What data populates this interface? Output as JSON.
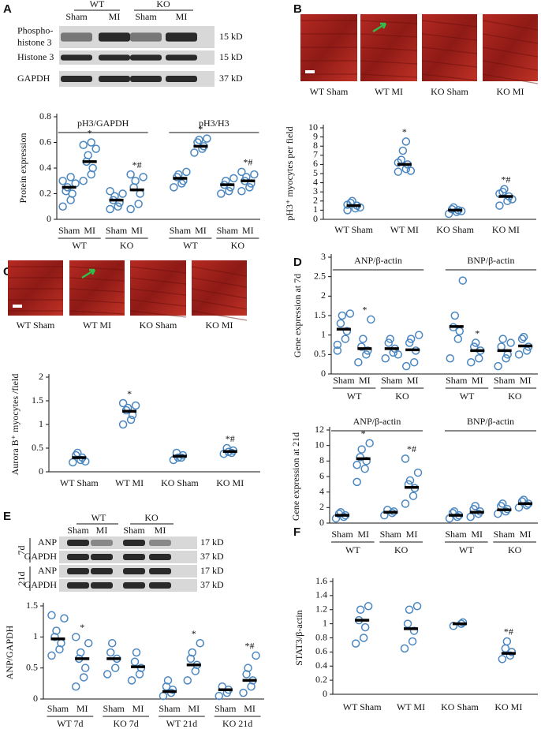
{
  "panel_labels": [
    "A",
    "B",
    "C",
    "D",
    "E",
    "F"
  ],
  "blot_a": {
    "groups": [
      "WT",
      "KO"
    ],
    "lanes": [
      "Sham",
      "MI",
      "Sham",
      "MI"
    ],
    "rows": [
      [
        "Phospho-",
        "histone 3"
      ],
      [
        "Histone 3"
      ],
      [
        "GAPDH"
      ]
    ],
    "sizes": [
      "15 kD",
      "15 kD",
      "37 kD"
    ]
  },
  "images_b": [
    "WT Sham",
    "WT MI",
    "KO Sham",
    "KO MI"
  ],
  "images_c": [
    "WT Sham",
    "WT MI",
    "KO Sham",
    "KO MI"
  ],
  "blot_e": {
    "groups": [
      "WT",
      "KO"
    ],
    "lanes": [
      "Sham",
      "MI",
      "Sham",
      "MI"
    ],
    "times": [
      "7d",
      "21d"
    ],
    "rows": [
      "ANP",
      "GAPDH"
    ],
    "sizes": [
      "17 kD",
      "37 kD"
    ]
  },
  "chart_data": [
    {
      "type": "dot",
      "color": "#4a86c0",
      "ylabel": "Protein expression",
      "ylim": [
        0,
        0.8
      ],
      "yticks": [
        0,
        0.2,
        0.4,
        0.6,
        0.8
      ],
      "groups": [
        "pH3/GAPDH",
        "pH3/H3"
      ],
      "subgroups": [
        "WT",
        "KO",
        "WT",
        "KO"
      ],
      "categories": [
        "Sham",
        "MI",
        "Sham",
        "MI",
        "Sham",
        "MI",
        "Sham",
        "MI"
      ],
      "means": [
        0.25,
        0.45,
        0.15,
        0.23,
        0.32,
        0.57,
        0.27,
        0.3
      ],
      "points": [
        [
          0.1,
          0.15,
          0.2,
          0.22,
          0.25,
          0.28,
          0.3,
          0.33
        ],
        [
          0.3,
          0.35,
          0.4,
          0.45,
          0.5,
          0.55,
          0.58,
          0.6
        ],
        [
          0.08,
          0.1,
          0.13,
          0.15,
          0.18,
          0.2,
          0.22
        ],
        [
          0.08,
          0.12,
          0.2,
          0.25,
          0.3,
          0.33,
          0.35
        ],
        [
          0.25,
          0.28,
          0.3,
          0.33,
          0.35,
          0.37
        ],
        [
          0.52,
          0.55,
          0.57,
          0.6,
          0.62,
          0.63
        ],
        [
          0.2,
          0.22,
          0.25,
          0.27,
          0.3,
          0.32
        ],
        [
          0.22,
          0.25,
          0.28,
          0.3,
          0.33,
          0.35,
          0.37
        ]
      ],
      "annotations": [
        null,
        "*",
        null,
        "*#",
        null,
        "*",
        null,
        "*#"
      ]
    },
    {
      "type": "dot",
      "color": "#4a86c0",
      "ylabel": "pH3⁺ myocytes per field",
      "ylim": [
        0,
        10
      ],
      "yticks": [
        0,
        1,
        2,
        3,
        4,
        5,
        6,
        7,
        8,
        9,
        10
      ],
      "categories": [
        "WT Sham",
        "WT MI",
        "KO Sham",
        "KO MI"
      ],
      "means": [
        1.5,
        6,
        1,
        2.5
      ],
      "points": [
        [
          1,
          1.2,
          1.5,
          1.8,
          2,
          1.3,
          1.6
        ],
        [
          5.2,
          5.5,
          6,
          6.5,
          7.5,
          5.3,
          6.2,
          8.5
        ],
        [
          0.6,
          0.8,
          1,
          1.1,
          1.3,
          0.9
        ],
        [
          1.5,
          2,
          2.5,
          3,
          3.3,
          2.2,
          2.8
        ]
      ],
      "annotations": [
        null,
        "*",
        null,
        "*#"
      ]
    },
    {
      "type": "dot",
      "color": "#4a86c0",
      "ylabel": "Aurora B⁺ myocytes /field",
      "ylim": [
        0,
        2
      ],
      "yticks": [
        0,
        0.5,
        1,
        1.5,
        2
      ],
      "categories": [
        "WT Sham",
        "WT MI",
        "KO Sham",
        "KO MI"
      ],
      "means": [
        0.3,
        1.28,
        0.33,
        0.43
      ],
      "points": [
        [
          0.2,
          0.25,
          0.3,
          0.35,
          0.4,
          0.22
        ],
        [
          1,
          1.1,
          1.2,
          1.3,
          1.35,
          1.4,
          1.45
        ],
        [
          0.25,
          0.3,
          0.35,
          0.4,
          0.3
        ],
        [
          0.38,
          0.4,
          0.45,
          0.5,
          0.42
        ]
      ],
      "annotations": [
        null,
        "*",
        null,
        "*#"
      ]
    },
    {
      "type": "dot",
      "color": "#4a86c0",
      "ylabel": "Gene expression at 7d",
      "ylim": [
        0,
        3
      ],
      "yticks": [
        0,
        0.5,
        1,
        1.5,
        2,
        2.5,
        3
      ],
      "groups": [
        "ANP/β-actin",
        "BNP/β-actin"
      ],
      "subgroups": [
        "WT",
        "KO",
        "WT",
        "KO"
      ],
      "categories": [
        "Sham",
        "MI",
        "Sham",
        "MI",
        "Sham",
        "MI",
        "Sham",
        "MI"
      ],
      "means": [
        1.15,
        0.65,
        0.65,
        0.62,
        1.22,
        0.6,
        0.6,
        0.72
      ],
      "points": [
        [
          0.6,
          0.9,
          1.1,
          1.3,
          1.5,
          1.55,
          0.75
        ],
        [
          0.3,
          0.5,
          0.6,
          0.7,
          0.9,
          1.4
        ],
        [
          0.4,
          0.55,
          0.65,
          0.8,
          0.9,
          0.5
        ],
        [
          0.2,
          0.3,
          0.6,
          0.8,
          0.9,
          1
        ],
        [
          0.4,
          0.9,
          1.1,
          1.2,
          1.5,
          2.4
        ],
        [
          0.3,
          0.4,
          0.6,
          0.7,
          0.8
        ],
        [
          0.2,
          0.4,
          0.5,
          0.7,
          0.9,
          0.8
        ],
        [
          0.5,
          0.6,
          0.7,
          0.9,
          0.95
        ]
      ],
      "annotations": [
        null,
        "*",
        null,
        null,
        null,
        "*",
        null,
        null
      ]
    },
    {
      "type": "dot",
      "color": "#4a86c0",
      "ylabel": "Gene expression at 21d",
      "ylim": [
        0,
        12
      ],
      "yticks": [
        0,
        2,
        4,
        6,
        8,
        10,
        12
      ],
      "groups": [
        "ANP/β-actin",
        "BNP/β-actin"
      ],
      "subgroups": [
        "WT",
        "KO",
        "WT",
        "KO"
      ],
      "categories": [
        "Sham",
        "MI",
        "Sham",
        "MI",
        "Sham",
        "MI",
        "Sham",
        "MI"
      ],
      "means": [
        1,
        8.3,
        1.4,
        4.6,
        1,
        1.4,
        1.7,
        2.5
      ],
      "points": [
        [
          0.6,
          0.8,
          1,
          1.2,
          1.4
        ],
        [
          5.3,
          7,
          8,
          8.5,
          9.5,
          10.3,
          7.5
        ],
        [
          1,
          1.3,
          1.5,
          1.7
        ],
        [
          2.5,
          3.5,
          4.5,
          5,
          5.5,
          6.5,
          8.3
        ],
        [
          0.6,
          0.8,
          1,
          1.3,
          1.5
        ],
        [
          0.8,
          1.2,
          1.5,
          1.8,
          2.2
        ],
        [
          1.2,
          1.5,
          1.8,
          2.2,
          2.5
        ],
        [
          2,
          2.3,
          2.5,
          2.8,
          3
        ]
      ],
      "annotations": [
        null,
        "*",
        null,
        "*#",
        null,
        null,
        null,
        null
      ]
    },
    {
      "type": "dot",
      "color": "#4a86c0",
      "ylabel": "ANP/GAPDH",
      "ylim": [
        0,
        1.5
      ],
      "yticks": [
        0,
        0.5,
        1,
        1.5
      ],
      "subgroups": [
        "WT 7d",
        "KO 7d",
        "WT 21d",
        "KO 21d"
      ],
      "categories": [
        "Sham",
        "MI",
        "Sham",
        "MI",
        "Sham",
        "MI",
        "Sham",
        "MI"
      ],
      "means": [
        0.97,
        0.65,
        0.65,
        0.52,
        0.12,
        0.55,
        0.15,
        0.3
      ],
      "points": [
        [
          0.7,
          0.8,
          0.9,
          1,
          1.1,
          1.3,
          1.35
        ],
        [
          0.2,
          0.35,
          0.5,
          0.65,
          0.75,
          0.9,
          1
        ],
        [
          0.4,
          0.5,
          0.65,
          0.75,
          0.9
        ],
        [
          0.3,
          0.4,
          0.5,
          0.6,
          0.75
        ],
        [
          0.05,
          0.1,
          0.15,
          0.2,
          0.3
        ],
        [
          0.3,
          0.45,
          0.55,
          0.65,
          0.75,
          0.9
        ],
        [
          0.05,
          0.1,
          0.15,
          0.2
        ],
        [
          0.1,
          0.2,
          0.3,
          0.4,
          0.5,
          0.7
        ]
      ],
      "annotations": [
        null,
        "*",
        null,
        null,
        null,
        "*",
        null,
        "*#"
      ]
    },
    {
      "type": "dot",
      "color": "#4a86c0",
      "ylabel": "STAT3/β-actin",
      "ylim": [
        0,
        1.6
      ],
      "yticks": [
        0,
        0.2,
        0.4,
        0.6,
        0.8,
        1,
        1.2,
        1.4,
        1.6
      ],
      "categories": [
        "WT Sham",
        "WT MI",
        "KO Sham",
        "KO MI"
      ],
      "means": [
        1.05,
        0.93,
        1,
        0.58
      ],
      "points": [
        [
          0.72,
          0.8,
          0.95,
          1.05,
          1.2,
          1.25
        ],
        [
          0.65,
          0.75,
          0.9,
          1,
          1.2,
          1.25
        ],
        [
          0.97,
          1,
          1.02
        ],
        [
          0.5,
          0.55,
          0.6,
          0.65,
          0.75
        ]
      ],
      "annotations": [
        null,
        null,
        null,
        "*#"
      ]
    }
  ]
}
